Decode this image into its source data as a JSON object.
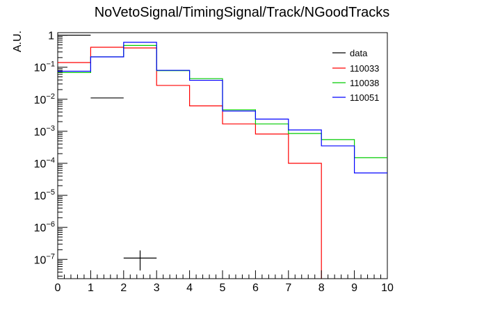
{
  "chart_data": {
    "type": "step-histogram",
    "title": "NoVetoSignal/TimingSignal/Track/NGoodTracks",
    "xlabel": "",
    "ylabel": "A.U.",
    "xlim": [
      0,
      10
    ],
    "ylim": [
      2.5e-08,
      1.2
    ],
    "y_scale": "log",
    "x_ticks": [
      "0",
      "1",
      "2",
      "3",
      "4",
      "5",
      "6",
      "7",
      "8",
      "9",
      "10"
    ],
    "y_ticks": [
      {
        "value": 1,
        "label": "1"
      },
      {
        "value": 0.1,
        "base": "10",
        "exp": "−1"
      },
      {
        "value": 0.01,
        "base": "10",
        "exp": "−2"
      },
      {
        "value": 0.001,
        "base": "10",
        "exp": "−3"
      },
      {
        "value": 0.0001,
        "base": "10",
        "exp": "−4"
      },
      {
        "value": 1e-05,
        "base": "10",
        "exp": "−5"
      },
      {
        "value": 1e-06,
        "base": "10",
        "exp": "−6"
      },
      {
        "value": 1e-07,
        "base": "10",
        "exp": "−7"
      }
    ],
    "bin_edges": [
      0,
      1,
      2,
      3,
      4,
      5,
      6,
      7,
      8,
      9,
      10
    ],
    "data_points": [
      {
        "x": 0.5,
        "y": 1.0,
        "xerr": 0.5
      },
      {
        "x": 1.5,
        "y": 0.011,
        "xerr": 0.5
      },
      {
        "x": 2.5,
        "y": 1.1e-07,
        "xerr": 0.5,
        "yerr_low": 4.5e-08,
        "yerr_high": 1.9e-07
      }
    ],
    "series": [
      {
        "name": "data",
        "color": "#000000",
        "style": "marker"
      },
      {
        "name": "110033",
        "color": "#ff0000",
        "values": [
          0.14,
          0.42,
          0.4,
          0.027,
          0.0062,
          0.0017,
          0.00082,
          0.0001,
          0,
          0
        ]
      },
      {
        "name": "110038",
        "color": "#00cc00",
        "values": [
          0.068,
          0.21,
          0.48,
          0.078,
          0.044,
          0.0047,
          0.0017,
          0.00085,
          0.00055,
          0.00015
        ]
      },
      {
        "name": "110051",
        "color": "#0000ff",
        "values": [
          0.075,
          0.21,
          0.6,
          0.08,
          0.039,
          0.0043,
          0.0024,
          0.0011,
          0.00035,
          5e-05
        ]
      }
    ],
    "legend": {
      "position": "top-right",
      "entries": [
        {
          "label": "data",
          "color": "#000000"
        },
        {
          "label": "110033",
          "color": "#ff0000"
        },
        {
          "label": "110038",
          "color": "#00cc00"
        },
        {
          "label": "110051",
          "color": "#0000ff"
        }
      ]
    },
    "grid": false
  }
}
